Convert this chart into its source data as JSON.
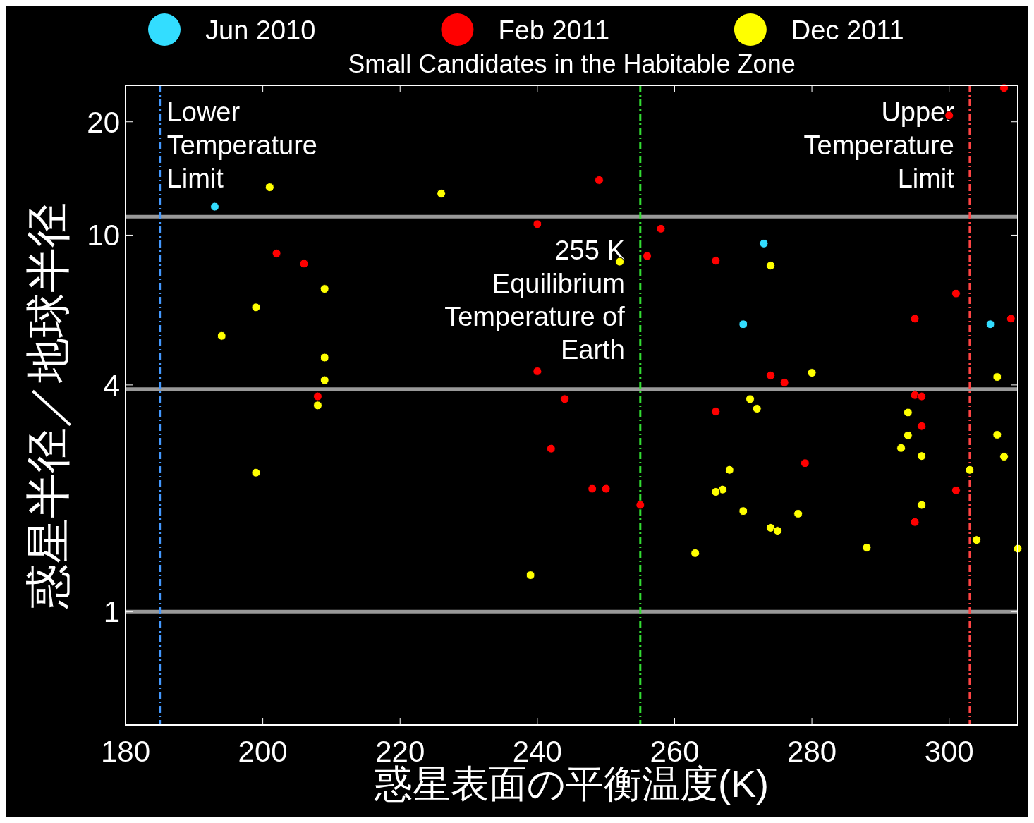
{
  "chart_data": {
    "type": "scatter",
    "subtitle": "Small Candidates in the Habitable Zone",
    "xlabel": "惑星表面の平衡温度(K)",
    "ylabel": "惑星半径／地球半径",
    "log": "y",
    "xlim": [
      180,
      310
    ],
    "ylim": [
      0.5,
      25
    ],
    "xticks": [
      180,
      200,
      220,
      240,
      260,
      280,
      300
    ],
    "yticks": [
      1,
      4,
      10,
      20
    ],
    "legend": "top",
    "marker": "circle",
    "grid": false,
    "ref_lines": [
      {
        "axis": "y",
        "value": 1,
        "color": "#999999",
        "line_style": "solid"
      },
      {
        "axis": "y",
        "value": 3.9,
        "color": "#999999",
        "line_style": "solid"
      },
      {
        "axis": "y",
        "value": 11.2,
        "color": "#999999",
        "line_style": "solid"
      },
      {
        "axis": "x",
        "value": 185,
        "label": "Lower\nTemperature\nLimit",
        "color": "#4499ff",
        "line_style": "dashed"
      },
      {
        "axis": "x",
        "value": 255,
        "label": "255 K\nEquilibrium\nTemperature of\nEarth",
        "color": "#33dd33",
        "line_style": "dashed"
      },
      {
        "axis": "x",
        "value": 303,
        "label": "Upper\nTemperature\nLimit",
        "color": "#ff4444",
        "line_style": "dashed"
      }
    ],
    "series": [
      {
        "name": "Jun 2010",
        "color": "#33ddff",
        "x": [
          193,
          273,
          270,
          306
        ],
        "values": [
          11.9,
          9.5,
          5.8,
          5.8
        ]
      },
      {
        "name": "Feb 2011",
        "color": "#ff0000",
        "x": [
          249,
          300,
          308,
          240,
          258,
          202,
          206,
          256,
          266,
          301,
          295,
          309,
          240,
          274,
          276,
          208,
          244,
          295,
          296,
          266,
          296,
          242,
          279,
          248,
          250,
          301,
          255,
          295
        ],
        "values": [
          14,
          20.8,
          24.6,
          10.7,
          10.4,
          8.95,
          8.4,
          8.8,
          8.55,
          7,
          6,
          6,
          4.35,
          4.24,
          4.06,
          3.73,
          3.67,
          3.76,
          3.73,
          3.4,
          3.11,
          2.71,
          2.48,
          2.12,
          2.12,
          2.1,
          1.92,
          1.73
        ]
      },
      {
        "name": "Dec 2011",
        "color": "#ffff00",
        "x": [
          201,
          226,
          252,
          274,
          209,
          199,
          194,
          209,
          280,
          307,
          209,
          271,
          208,
          272,
          294,
          294,
          307,
          293,
          296,
          308,
          268,
          303,
          199,
          267,
          266,
          296,
          270,
          278,
          274,
          275,
          304,
          288,
          263,
          310,
          239
        ],
        "values": [
          13.4,
          12.9,
          8.5,
          8.3,
          7.2,
          6.43,
          5.4,
          4.73,
          4.31,
          4.2,
          4.12,
          3.67,
          3.53,
          3.46,
          3.38,
          2.94,
          2.95,
          2.72,
          2.59,
          2.58,
          2.38,
          2.38,
          2.34,
          2.11,
          2.08,
          1.92,
          1.85,
          1.82,
          1.67,
          1.64,
          1.55,
          1.48,
          1.43,
          1.47,
          1.25
        ]
      }
    ]
  }
}
